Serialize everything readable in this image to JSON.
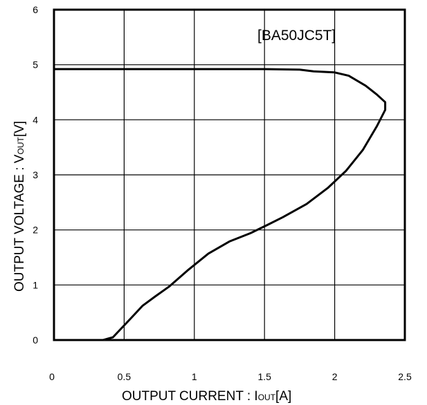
{
  "chart_data": {
    "type": "line",
    "annotation": "[BA50JC5T]",
    "xlabel_main": "OUTPUT CURRENT  : I",
    "xlabel_sub": "OUT",
    "xlabel_unit": "[A]",
    "ylabel_main": "OUTPUT VOLTAGE  : V",
    "ylabel_sub": "OUT",
    "ylabel_unit": "[V]",
    "xlim": [
      0,
      2.5
    ],
    "ylim": [
      0,
      6
    ],
    "x_ticks": [
      "0",
      "0.5",
      "1",
      "1.5",
      "2",
      "2.5"
    ],
    "y_ticks": [
      "0",
      "1",
      "2",
      "3",
      "4",
      "5",
      "6"
    ],
    "grid": true,
    "series": [
      {
        "points": [
          [
            0,
            4.92
          ],
          [
            0.5,
            4.92
          ],
          [
            1.0,
            4.92
          ],
          [
            1.5,
            4.92
          ],
          [
            1.75,
            4.91
          ],
          [
            1.85,
            4.88
          ],
          [
            2.0,
            4.86
          ],
          [
            2.1,
            4.8
          ],
          [
            2.22,
            4.62
          ],
          [
            2.3,
            4.46
          ],
          [
            2.36,
            4.32
          ],
          [
            2.36,
            4.18
          ],
          [
            2.3,
            3.88
          ],
          [
            2.2,
            3.45
          ],
          [
            2.08,
            3.07
          ],
          [
            1.95,
            2.76
          ],
          [
            1.8,
            2.47
          ],
          [
            1.63,
            2.23
          ],
          [
            1.52,
            2.09
          ],
          [
            1.4,
            1.94
          ],
          [
            1.25,
            1.79
          ],
          [
            1.1,
            1.57
          ],
          [
            0.95,
            1.26
          ],
          [
            0.82,
            0.97
          ],
          [
            0.72,
            0.79
          ],
          [
            0.63,
            0.62
          ],
          [
            0.55,
            0.4
          ],
          [
            0.42,
            0.05
          ],
          [
            0.35,
            0
          ]
        ]
      }
    ]
  }
}
